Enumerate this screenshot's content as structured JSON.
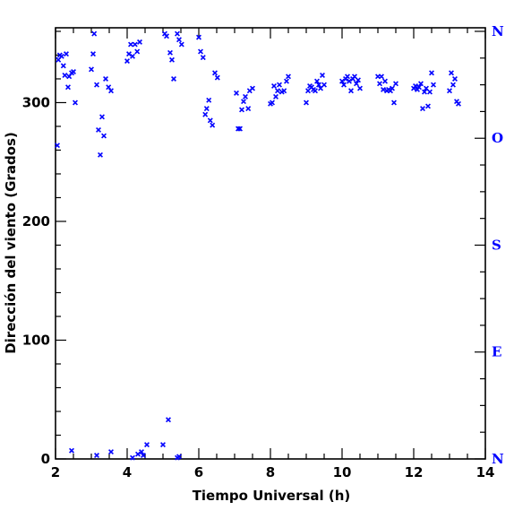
{
  "chart_data": {
    "type": "scatter",
    "xlabel": "Tiempo Universal (h)",
    "ylabel": "Dirección del viento (Grados)",
    "xlim": [
      2,
      14
    ],
    "ylim": [
      0,
      363
    ],
    "x_ticks": [
      2,
      4,
      6,
      8,
      10,
      12,
      14
    ],
    "y_ticks": [
      0,
      100,
      200,
      300
    ],
    "right_axis_labels": [
      {
        "value": 0,
        "label": "N"
      },
      {
        "value": 90,
        "label": "E"
      },
      {
        "value": 180,
        "label": "S"
      },
      {
        "value": 270,
        "label": "O"
      },
      {
        "value": 360,
        "label": "N"
      }
    ],
    "grid": false,
    "marker": "x",
    "marker_color": "#0000ff",
    "x": [
      2.05,
      2.08,
      2.12,
      2.17,
      2.22,
      2.26,
      2.3,
      2.35,
      2.38,
      2.45,
      2.5,
      2.55,
      3.0,
      3.05,
      3.08,
      3.15,
      3.2,
      3.25,
      3.3,
      3.35,
      3.4,
      3.48,
      3.55,
      4.0,
      4.05,
      4.1,
      4.15,
      4.22,
      4.28,
      4.35,
      5.05,
      5.1,
      5.2,
      5.25,
      5.3,
      5.4,
      5.45,
      5.52,
      6.0,
      6.05,
      6.12,
      6.18,
      6.22,
      6.28,
      6.32,
      6.38,
      6.45,
      6.52,
      7.05,
      7.1,
      7.15,
      7.2,
      7.25,
      7.3,
      7.38,
      7.42,
      7.5,
      8.0,
      8.05,
      8.1,
      8.15,
      8.2,
      8.25,
      8.32,
      8.38,
      8.45,
      8.5,
      9.0,
      9.05,
      9.1,
      9.15,
      9.2,
      9.25,
      9.3,
      9.35,
      9.4,
      9.45,
      9.5,
      10.0,
      10.05,
      10.1,
      10.15,
      10.2,
      10.25,
      10.3,
      10.35,
      10.4,
      10.45,
      10.5,
      11.0,
      11.05,
      11.1,
      11.15,
      11.2,
      11.25,
      11.3,
      11.35,
      11.4,
      11.45,
      11.5,
      12.0,
      12.05,
      12.1,
      12.15,
      12.2,
      12.25,
      12.3,
      12.35,
      12.4,
      12.45,
      12.5,
      12.55,
      13.0,
      13.05,
      13.1,
      13.15,
      13.2,
      13.25,
      2.45,
      3.15,
      3.55,
      4.15,
      4.3,
      4.4,
      4.45,
      4.55,
      5.0,
      5.15,
      5.4,
      5.45
    ],
    "y": [
      264,
      336,
      340,
      339,
      331,
      323,
      341,
      313,
      322,
      325,
      326,
      300,
      328,
      341,
      358,
      315,
      277,
      256,
      288,
      272,
      320,
      313,
      310,
      335,
      341,
      349,
      339,
      349,
      343,
      351,
      358,
      356,
      342,
      336,
      320,
      358,
      353,
      349,
      355,
      343,
      338,
      290,
      295,
      302,
      285,
      281,
      325,
      321,
      308,
      278,
      278,
      294,
      301,
      305,
      295,
      310,
      312,
      299,
      300,
      314,
      305,
      310,
      315,
      309,
      310,
      318,
      322,
      300,
      310,
      314,
      313,
      311,
      310,
      318,
      315,
      312,
      323,
      315,
      318,
      315,
      320,
      322,
      318,
      310,
      320,
      322,
      316,
      319,
      312,
      322,
      316,
      322,
      311,
      318,
      310,
      311,
      310,
      312,
      300,
      316,
      312,
      314,
      311,
      313,
      316,
      295,
      309,
      312,
      297,
      309,
      325,
      315,
      310,
      325,
      315,
      320,
      301,
      299,
      7,
      3,
      6,
      1,
      4,
      6,
      3,
      12,
      12,
      33,
      1,
      2
    ]
  }
}
